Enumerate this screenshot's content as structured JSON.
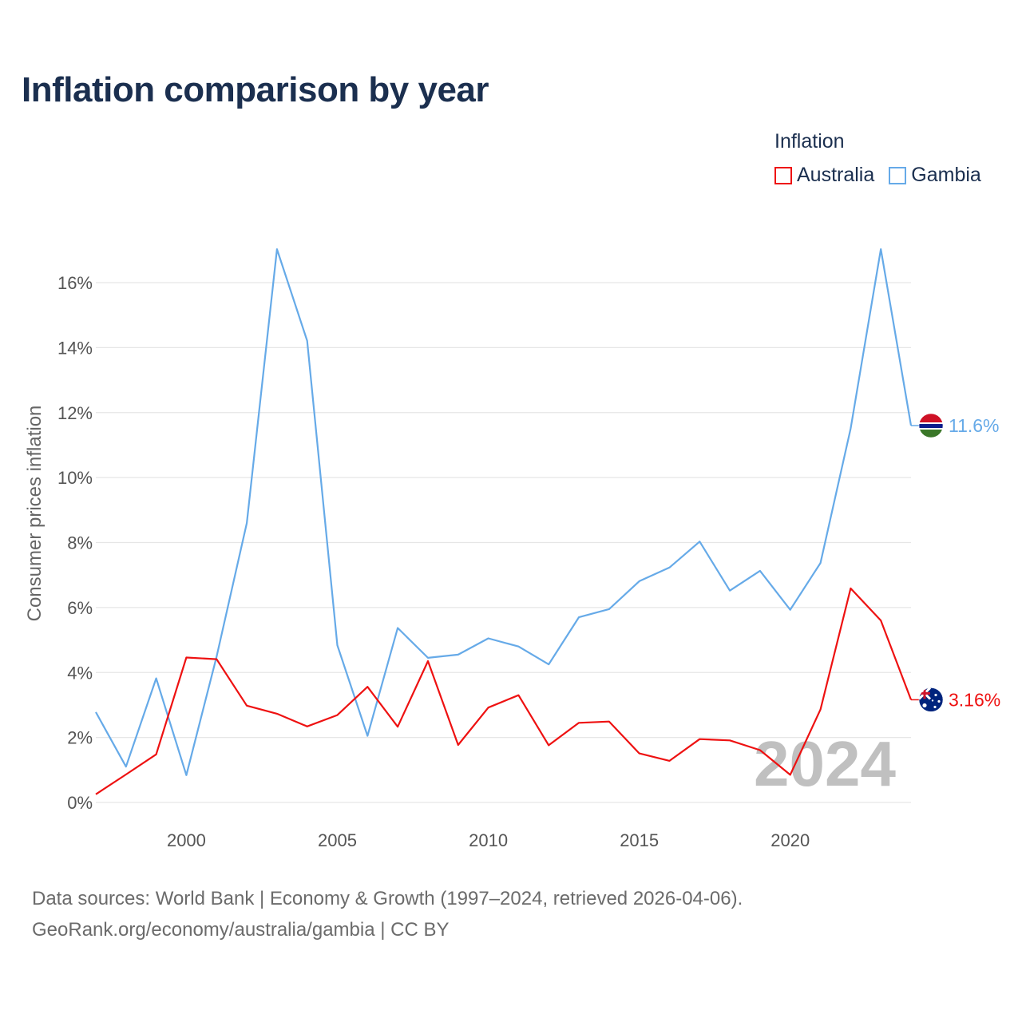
{
  "title": "Inflation comparison by year",
  "legend": {
    "title": "Inflation",
    "items": [
      {
        "label": "Australia",
        "color": "#ee1111"
      },
      {
        "label": "Gambia",
        "color": "#66aae8"
      }
    ]
  },
  "footer": {
    "line1": "Data sources: World Bank | Economy & Growth (1997–2024, retrieved 2026-04-06).",
    "line2": "GeoRank.org/economy/australia/gambia | CC BY"
  },
  "chart_data": {
    "type": "line",
    "title": "Inflation comparison by year",
    "xlabel": "",
    "ylabel": "Consumer prices inflation",
    "xlim": [
      1997,
      2024
    ],
    "ylim": [
      0,
      16
    ],
    "x_ticks": [
      2000,
      2005,
      2010,
      2015,
      2020
    ],
    "y_ticks": [
      0,
      2,
      4,
      6,
      8,
      10,
      12,
      14,
      16
    ],
    "y_tick_labels": [
      "0%",
      "2%",
      "4%",
      "6%",
      "8%",
      "10%",
      "12%",
      "14%",
      "16%"
    ],
    "grid": true,
    "legend_position": "top-right",
    "watermark_year": "2024",
    "x": [
      1997,
      1998,
      1999,
      2000,
      2001,
      2002,
      2003,
      2004,
      2005,
      2006,
      2007,
      2008,
      2009,
      2010,
      2011,
      2012,
      2013,
      2014,
      2015,
      2016,
      2017,
      2018,
      2019,
      2020,
      2021,
      2022,
      2023,
      2024
    ],
    "series": [
      {
        "name": "Australia",
        "color": "#ee1111",
        "end_label": "3.16%",
        "values": [
          0.25,
          0.86,
          1.48,
          4.46,
          4.41,
          2.98,
          2.73,
          2.34,
          2.69,
          3.56,
          2.33,
          4.35,
          1.77,
          2.92,
          3.3,
          1.76,
          2.45,
          2.49,
          1.51,
          1.28,
          1.95,
          1.91,
          1.61,
          0.85,
          2.86,
          6.59,
          5.6,
          3.16
        ]
      },
      {
        "name": "Gambia",
        "color": "#66aae8",
        "end_label": "11.6%",
        "values": [
          2.78,
          1.1,
          3.82,
          0.84,
          4.49,
          8.6,
          17.03,
          14.21,
          4.84,
          2.05,
          5.37,
          4.45,
          4.55,
          5.05,
          4.8,
          4.25,
          5.7,
          5.95,
          6.81,
          7.23,
          8.03,
          6.52,
          7.13,
          5.93,
          7.37,
          11.51,
          17.03,
          11.6
        ]
      }
    ]
  }
}
